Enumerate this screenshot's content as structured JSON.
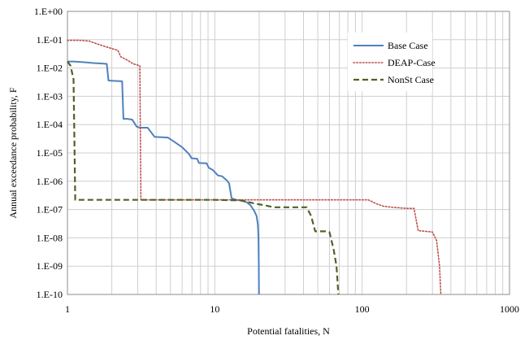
{
  "chart_data": {
    "type": "line",
    "title": "",
    "xlabel": "Potential fatalities, N",
    "ylabel": "Annual exceedance probability, F",
    "xscale": "log",
    "yscale": "log",
    "xlim": [
      1,
      1000
    ],
    "ylim": [
      1e-10,
      1
    ],
    "grid": true,
    "legend_position": "top-right",
    "x_ticks": [
      {
        "value": 1,
        "label": "1"
      },
      {
        "value": 10,
        "label": "10"
      },
      {
        "value": 100,
        "label": "100"
      },
      {
        "value": 1000,
        "label": "1000"
      }
    ],
    "y_ticks": [
      {
        "value": 1,
        "label": "1.E+00"
      },
      {
        "value": 0.1,
        "label": "1.E-01"
      },
      {
        "value": 0.01,
        "label": "1.E-02"
      },
      {
        "value": 0.001,
        "label": "1.E-03"
      },
      {
        "value": 0.0001,
        "label": "1.E-04"
      },
      {
        "value": 1e-05,
        "label": "1.E-05"
      },
      {
        "value": 1e-06,
        "label": "1.E-06"
      },
      {
        "value": 1e-07,
        "label": "1.E-07"
      },
      {
        "value": 1e-08,
        "label": "1.E-08"
      },
      {
        "value": 1e-09,
        "label": "1.E-09"
      },
      {
        "value": 1e-10,
        "label": "1.E-10"
      }
    ],
    "series": [
      {
        "name": "Base Case",
        "color": "#4f81bd",
        "style": "solid",
        "points": [
          [
            1.0,
            0.017
          ],
          [
            1.1,
            0.017
          ],
          [
            1.3,
            0.016
          ],
          [
            1.5,
            0.015
          ],
          [
            1.85,
            0.014
          ],
          [
            1.9,
            0.0036
          ],
          [
            2.1,
            0.0035
          ],
          [
            2.35,
            0.0034
          ],
          [
            2.4,
            0.00016
          ],
          [
            2.55,
            0.00016
          ],
          [
            2.75,
            0.00015
          ],
          [
            2.95,
            8.5e-05
          ],
          [
            3.1,
            7.8e-05
          ],
          [
            3.5,
            7.8e-05
          ],
          [
            3.9,
            3.7e-05
          ],
          [
            4.8,
            3.5e-05
          ],
          [
            5.3,
            2.5e-05
          ],
          [
            6.0,
            1.6e-05
          ],
          [
            6.7,
            9e-06
          ],
          [
            6.95,
            6.5e-06
          ],
          [
            7.6,
            6.2e-06
          ],
          [
            7.8,
            4.4e-06
          ],
          [
            8.8,
            4.3e-06
          ],
          [
            9.1,
            3e-06
          ],
          [
            9.7,
            2.5e-06
          ],
          [
            10.5,
            1.6e-06
          ],
          [
            11.2,
            1.5e-06
          ],
          [
            12.0,
            1.1e-06
          ],
          [
            12.5,
            8.5e-07
          ],
          [
            13.0,
            2.5e-07
          ],
          [
            14.0,
            2.2e-07
          ],
          [
            15.0,
            2.1e-07
          ],
          [
            16.5,
            1.8e-07
          ],
          [
            17.5,
            1.4e-07
          ],
          [
            18.5,
            9e-08
          ],
          [
            19.2,
            6e-08
          ],
          [
            19.6,
            3e-08
          ],
          [
            19.8,
            1e-08
          ],
          [
            19.9,
            1e-09
          ],
          [
            19.95,
            1e-10
          ]
        ]
      },
      {
        "name": "DEAP-Case",
        "color": "#c0504d",
        "style": "dotted",
        "points": [
          [
            1.0,
            0.095
          ],
          [
            1.2,
            0.095
          ],
          [
            1.4,
            0.09
          ],
          [
            1.6,
            0.07
          ],
          [
            1.85,
            0.055
          ],
          [
            2.1,
            0.045
          ],
          [
            2.2,
            0.042
          ],
          [
            2.3,
            0.025
          ],
          [
            2.5,
            0.02
          ],
          [
            2.8,
            0.014
          ],
          [
            3.1,
            0.012
          ],
          [
            3.15,
            2.2e-07
          ],
          [
            10,
            2.2e-07
          ],
          [
            50,
            2.2e-07
          ],
          [
            110,
            2.2e-07
          ],
          [
            125,
            1.6e-07
          ],
          [
            140,
            1.3e-07
          ],
          [
            160,
            1.2e-07
          ],
          [
            200,
            1.1e-07
          ],
          [
            225,
            1.1e-07
          ],
          [
            240,
            1.8e-08
          ],
          [
            270,
            1.7e-08
          ],
          [
            300,
            1.6e-08
          ],
          [
            320,
            8e-09
          ],
          [
            335,
            1e-09
          ],
          [
            342,
            1e-10
          ]
        ]
      },
      {
        "name": "NonSt Case",
        "color": "#4f6228",
        "style": "dashed",
        "points": [
          [
            1.0,
            0.017
          ],
          [
            1.05,
            0.012
          ],
          [
            1.1,
            0.004
          ],
          [
            1.13,
            2.2e-07
          ],
          [
            5,
            2.2e-07
          ],
          [
            10,
            2.2e-07
          ],
          [
            15,
            2.1e-07
          ],
          [
            19,
            1.6e-07
          ],
          [
            22,
            1.4e-07
          ],
          [
            25,
            1.2e-07
          ],
          [
            32,
            1.2e-07
          ],
          [
            42,
            1.2e-07
          ],
          [
            45,
            6e-08
          ],
          [
            48,
            1.7e-08
          ],
          [
            57,
            1.7e-08
          ],
          [
            60,
            1.6e-08
          ],
          [
            64,
            4e-09
          ],
          [
            67,
            1e-09
          ],
          [
            69,
            1e-10
          ]
        ]
      }
    ]
  }
}
